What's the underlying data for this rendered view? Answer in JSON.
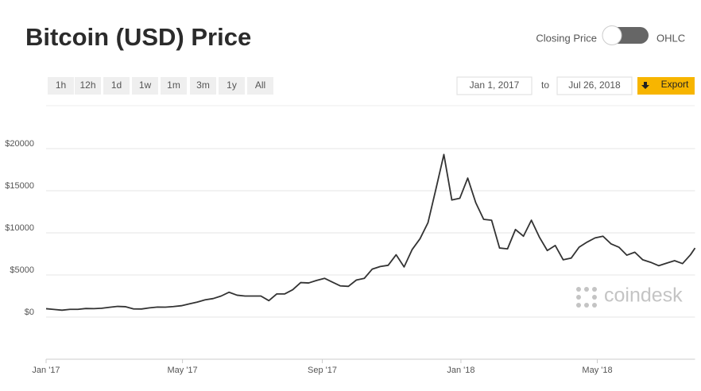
{
  "header": {
    "title": "Bitcoin (USD) Price",
    "toggle_left": "Closing Price",
    "toggle_right": "OHLC"
  },
  "controls": {
    "ranges": [
      "1h",
      "12h",
      "1d",
      "1w",
      "1m",
      "3m",
      "1y",
      "All"
    ],
    "from": "Jan 1, 2017",
    "to_label": "to",
    "to": "Jul 26, 2018",
    "export": "Export"
  },
  "watermark": "coindesk",
  "chart_data": {
    "type": "line",
    "color": "#333333",
    "grid": true,
    "x": [
      "2017-01-01",
      "2017-01-08",
      "2017-01-15",
      "2017-01-22",
      "2017-01-29",
      "2017-02-05",
      "2017-02-12",
      "2017-02-19",
      "2017-02-26",
      "2017-03-05",
      "2017-03-12",
      "2017-03-19",
      "2017-03-26",
      "2017-04-02",
      "2017-04-09",
      "2017-04-16",
      "2017-04-23",
      "2017-04-30",
      "2017-05-07",
      "2017-05-14",
      "2017-05-21",
      "2017-05-28",
      "2017-06-04",
      "2017-06-11",
      "2017-06-18",
      "2017-06-25",
      "2017-07-02",
      "2017-07-09",
      "2017-07-16",
      "2017-07-23",
      "2017-07-30",
      "2017-08-06",
      "2017-08-13",
      "2017-08-20",
      "2017-08-27",
      "2017-09-03",
      "2017-09-10",
      "2017-09-17",
      "2017-09-24",
      "2017-10-01",
      "2017-10-08",
      "2017-10-15",
      "2017-10-22",
      "2017-10-29",
      "2017-11-05",
      "2017-11-12",
      "2017-11-19",
      "2017-11-26",
      "2017-12-03",
      "2017-12-10",
      "2017-12-17",
      "2017-12-24",
      "2017-12-31",
      "2018-01-07",
      "2018-01-14",
      "2018-01-21",
      "2018-01-28",
      "2018-02-04",
      "2018-02-11",
      "2018-02-18",
      "2018-02-25",
      "2018-03-04",
      "2018-03-11",
      "2018-03-18",
      "2018-03-25",
      "2018-04-01",
      "2018-04-08",
      "2018-04-15",
      "2018-04-22",
      "2018-04-29",
      "2018-05-06",
      "2018-05-13",
      "2018-05-20",
      "2018-05-27",
      "2018-06-03",
      "2018-06-10",
      "2018-06-17",
      "2018-06-24",
      "2018-07-01",
      "2018-07-08",
      "2018-07-15",
      "2018-07-22",
      "2018-07-26"
    ],
    "values": [
      998,
      910,
      820,
      920,
      920,
      1020,
      1000,
      1050,
      1170,
      1270,
      1230,
      970,
      960,
      1100,
      1190,
      1180,
      1250,
      1350,
      1570,
      1780,
      2050,
      2200,
      2500,
      2950,
      2600,
      2500,
      2500,
      2500,
      1950,
      2750,
      2750,
      3250,
      4100,
      4050,
      4350,
      4600,
      4150,
      3700,
      3650,
      4400,
      4600,
      5700,
      6000,
      6150,
      7400,
      5950,
      8000,
      9300,
      11200,
      15200,
      19300,
      13900,
      14100,
      16500,
      13600,
      11600,
      11500,
      8200,
      8100,
      10400,
      9600,
      11500,
      9500,
      7900,
      8500,
      6800,
      7000,
      8300,
      8900,
      9400,
      9600,
      8700,
      8300,
      7350,
      7700,
      6800,
      6500,
      6100,
      6400,
      6700,
      6350,
      7400,
      8200
    ],
    "xlim": [
      "2017-01-01",
      "2018-07-26"
    ],
    "xticks": [
      {
        "value": "2017-01-01",
        "label": "Jan '17"
      },
      {
        "value": "2017-05-01",
        "label": "May '17"
      },
      {
        "value": "2017-09-01",
        "label": "Sep '17"
      },
      {
        "value": "2018-01-01",
        "label": "Jan '18"
      },
      {
        "value": "2018-05-01",
        "label": "May '18"
      }
    ],
    "ylim": [
      -5000,
      25000
    ],
    "yticks": [
      {
        "value": 0,
        "label": "$0"
      },
      {
        "value": 5000,
        "label": "$5000"
      },
      {
        "value": 10000,
        "label": "$10000"
      },
      {
        "value": 15000,
        "label": "$15000"
      },
      {
        "value": 20000,
        "label": "$20000"
      }
    ]
  }
}
